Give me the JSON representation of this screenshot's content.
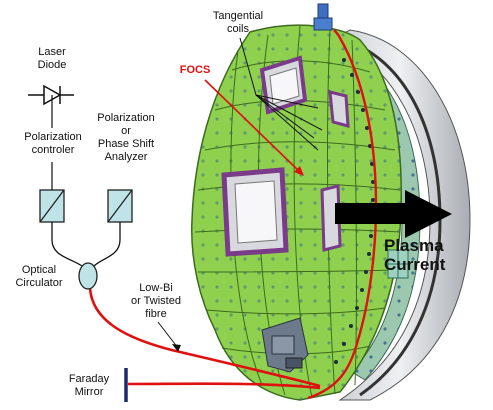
{
  "labels": {
    "laser_diode": [
      "Laser",
      "Diode"
    ],
    "polarization_controller": [
      "Polarization",
      "controler"
    ],
    "analyzer": [
      "Polarization",
      "or",
      "Phase Shift",
      "Analyzer"
    ],
    "optical_circulator": [
      "Optical",
      "Circulator"
    ],
    "fibre": [
      "Low-Bi",
      "or Twisted",
      "fibre"
    ],
    "faraday_mirror": [
      "Faraday",
      "Mirror"
    ],
    "tangential_coils": [
      "Tangential",
      "coils"
    ],
    "focs": "FOCS",
    "plasma_current": [
      "Plasma",
      "Current"
    ]
  },
  "colors": {
    "fibre": "#e01010",
    "vessel": "#8fd14f",
    "vessel_dark": "#5e9a2c",
    "mirror": "#1e2a6e",
    "focs_label": "#e01010",
    "port_frame": "#c060c0",
    "arrow": "#000000"
  }
}
